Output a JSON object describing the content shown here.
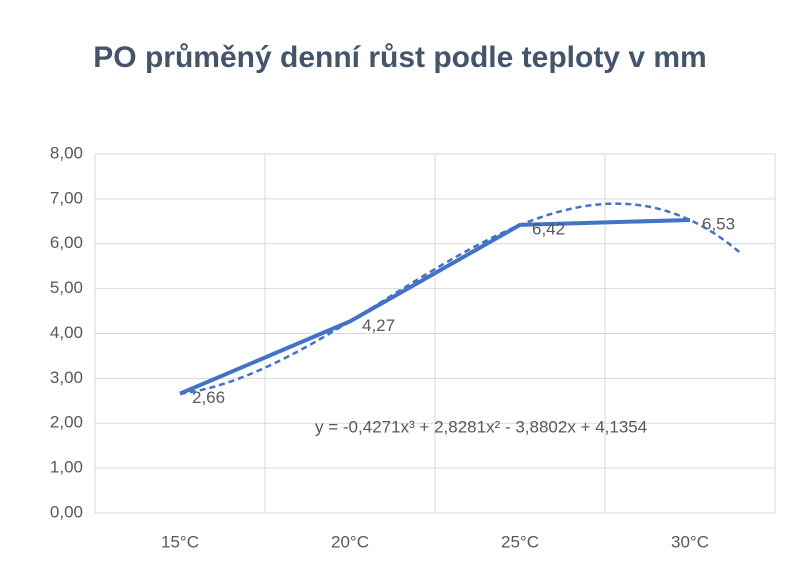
{
  "chart_data": {
    "type": "line",
    "title": "PO průměný denní růst podle teploty v mm",
    "categories": [
      "15°C",
      "20°C",
      "25°C",
      "30°C"
    ],
    "series": [
      {
        "color": "#4472c4",
        "values": [
          2.66,
          4.27,
          6.42,
          6.53
        ],
        "value_labels": [
          "2,66",
          "4,27",
          "6,42",
          "6,53"
        ]
      }
    ],
    "trendline": {
      "type": "polynomial",
      "equation": "y = -0,4271x³ + 2,8281x² - 3,8802x + 4,1354",
      "coefficients": [
        -0.4271,
        2.8281,
        -3.8802,
        4.1354
      ]
    },
    "ylim": [
      0,
      8
    ],
    "yticks": [
      {
        "value": 0,
        "label": "0,00"
      },
      {
        "value": 1,
        "label": "1,00"
      },
      {
        "value": 2,
        "label": "2,00"
      },
      {
        "value": 3,
        "label": "3,00"
      },
      {
        "value": 4,
        "label": "4,00"
      },
      {
        "value": 5,
        "label": "5,00"
      },
      {
        "value": 6,
        "label": "6,00"
      },
      {
        "value": 7,
        "label": "7,00"
      },
      {
        "value": 8,
        "label": "8,00"
      }
    ],
    "grid": true
  }
}
